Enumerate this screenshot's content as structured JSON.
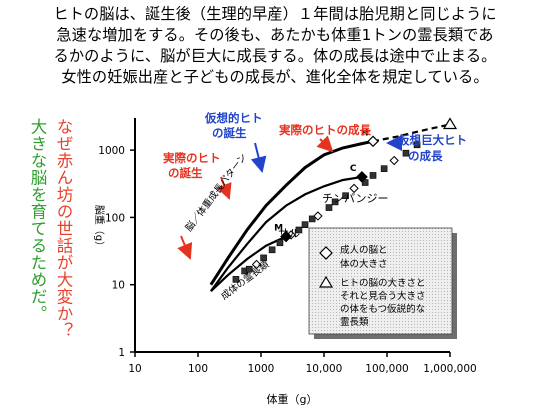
{
  "slide": {
    "intro_lines": [
      "ヒトの脳は、誕生後（生理的早産）１年間は胎児期と同じように",
      "急速な増加をする。その後も、あたかも体重1トンの霊長類であ",
      "るかのように、脳が巨大に成長する。体の成長は途中で止まる。",
      "女性の妊娠出産と子どもの成長が、進化全体を規定している。"
    ],
    "question_red": "なぜ赤ん坊の世話が大変か？",
    "question_green": "大きな脳を育てるためだ。"
  },
  "chart_data": {
    "type": "line",
    "x_scale": "log",
    "y_scale": "log",
    "xlabel": "体重（g）",
    "ylabel": "脳重（g）",
    "x_ticks": [
      "10",
      "100",
      "1000",
      "10,000",
      "100,000",
      "1,000,000"
    ],
    "y_ticks": [
      "1",
      "10",
      "100",
      "1000"
    ],
    "xlim": [
      10,
      1000000
    ],
    "ylim": [
      1,
      3000
    ],
    "series": [
      {
        "name": "脳／体重成長パターン",
        "style": "solid",
        "x": [
          160,
          300,
          600,
          1200,
          2500,
          5000,
          10000,
          20000,
          40000,
          60000
        ],
        "y": [
          10,
          25,
          65,
          150,
          300,
          550,
          850,
          1080,
          1250,
          1350
        ]
      },
      {
        "style": "dashed",
        "x": [
          60000,
          150000,
          400000,
          1000000
        ],
        "y": [
          1350,
          1600,
          2000,
          2400
        ]
      },
      {
        "style": "solid",
        "x": [
          160,
          300,
          600,
          1200,
          2500,
          5000,
          10000,
          20000,
          40000
        ],
        "y": [
          8,
          18,
          40,
          85,
          150,
          220,
          290,
          360,
          400
        ]
      },
      {
        "style": "solid",
        "x": [
          160,
          300,
          600,
          1200,
          2500
        ],
        "y": [
          8,
          14,
          24,
          38,
          52
        ]
      },
      {
        "name": "成体の霊長類",
        "x": [
          400,
          550,
          650,
          850,
          1100,
          1500,
          2000,
          3000,
          4000,
          5000,
          6500,
          8000,
          12000,
          15000,
          22000,
          30000,
          45000,
          60000,
          90000,
          130000,
          200000,
          300000
        ],
        "y": [
          12,
          16,
          17,
          20,
          25,
          33,
          42,
          55,
          65,
          78,
          95,
          105,
          140,
          170,
          210,
          270,
          330,
          420,
          530,
          700,
          900,
          1200
        ]
      }
    ],
    "markers": [
      {
        "label": "M",
        "x": 2500,
        "y": 52
      },
      {
        "label": "C",
        "x": 40000,
        "y": 400
      },
      {
        "label": "H",
        "x": 60000,
        "y": 1350
      },
      {
        "label": "",
        "x": 1000000,
        "y": 2400
      }
    ],
    "annotations": [
      {
        "text": "実際のヒトの成長",
        "color": "#e53322"
      },
      {
        "text": "仮想的ヒト",
        "color": "#2244cc"
      },
      {
        "text": "の誕生",
        "color": "#2244cc"
      },
      {
        "text": "仮想巨大ヒト",
        "color": "#2244cc"
      },
      {
        "text": "の成長",
        "color": "#2244cc"
      },
      {
        "text": "実際のヒト",
        "color": "#e53322"
      },
      {
        "text": "の誕生",
        "color": "#e53322"
      },
      {
        "text": "チンパンジー",
        "color": "#000000"
      },
      {
        "text": "サル",
        "color": "#000000"
      },
      {
        "text": "脳／体重成長パターン",
        "color": "#000000"
      },
      {
        "text": "成体の霊長類",
        "color": "#000000"
      }
    ],
    "legend": [
      "成人の脳と",
      "体の大きさ",
      "ヒトの脳の大きさと",
      "それと見合う大きさ",
      "の体をもつ仮説的な",
      "霊長類"
    ]
  }
}
